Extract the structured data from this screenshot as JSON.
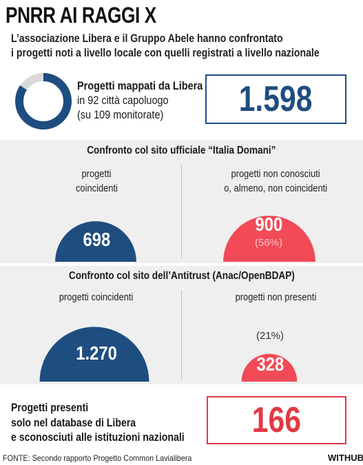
{
  "title": "PNRR AI RAGGI X",
  "subtitle_line1": "L’associazione Libera e il Gruppo Abele hanno confrontato",
  "subtitle_line2": "i progetti noti a livello locale con quelli registrati a livello nazionale",
  "mapped": {
    "line1": "Progetti mappati da Libera",
    "line2": "in 92 città capoluogo",
    "line3": "(su 109 monitorate)",
    "value": "1.598",
    "donut_fraction": 0.844
  },
  "section1": {
    "title": "Confronto col sito ufficiale “Italia Domani”",
    "left_label_1": "progetti",
    "left_label_2": "coincidenti",
    "right_label_1": "progetti non conosciuti",
    "right_label_2": "o, almeno, non coincidenti",
    "left_value": "698",
    "right_value": "900",
    "right_pct": "(56%)"
  },
  "section2": {
    "title": "Confronto col sito dell’Antitrust (Anac/OpenBDAP)",
    "left_label": "progetti coincidenti",
    "right_label": "progetti non presenti",
    "left_value": "1.270",
    "right_value": "328",
    "right_pct": "(21%)"
  },
  "bottom": {
    "line1": "Progetti presenti",
    "line2": "solo nel database di Libera",
    "line3": "e sconosciuti alle istituzioni nazionali",
    "value": "166"
  },
  "source": "FONTE: Secondo rapporto Progetto Common Lavialibera",
  "brand": "WITHUB",
  "colors": {
    "blue": "#1e4d80",
    "red": "#f24a57",
    "gray_track": "#d9d9d9",
    "panel_bg": "#efefef"
  },
  "chart_data": [
    {
      "type": "pie",
      "title": "Confronto col sito ufficiale “Italia Domani”",
      "categories": [
        "progetti coincidenti",
        "progetti non conosciuti o, almeno, non coincidenti"
      ],
      "values": [
        698,
        900
      ],
      "labels": [
        "698",
        "900 (56%)"
      ]
    },
    {
      "type": "pie",
      "title": "Confronto col sito dell’Antitrust (Anac/OpenBDAP)",
      "categories": [
        "progetti coincidenti",
        "progetti non presenti"
      ],
      "values": [
        1270,
        328
      ],
      "labels": [
        "1.270",
        "328 (21%)"
      ]
    }
  ]
}
